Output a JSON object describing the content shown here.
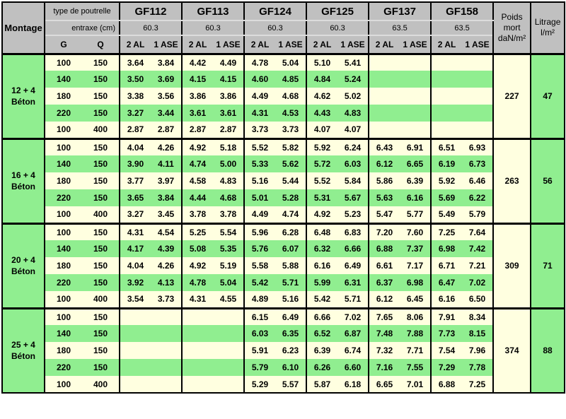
{
  "header": {
    "montage_label": "Montage",
    "type_label": "type de poutrelle",
    "entraxe_label": "entraxe (cm)",
    "g_label": "G",
    "q_label": "Q",
    "groups": [
      {
        "name": "GF112",
        "entraxe": "60.3",
        "sub1": "2 AL",
        "sub2": "1 ASE"
      },
      {
        "name": "GF113",
        "entraxe": "60.3",
        "sub1": "2 AL",
        "sub2": "1 ASE"
      },
      {
        "name": "GF124",
        "entraxe": "60.3",
        "sub1": "2 AL",
        "sub2": "1 ASE"
      },
      {
        "name": "GF125",
        "entraxe": "60.3",
        "sub1": "2 AL",
        "sub2": "1 ASE"
      },
      {
        "name": "GF137",
        "entraxe": "63.5",
        "sub1": "2 AL",
        "sub2": "1 ASE"
      },
      {
        "name": "GF158",
        "entraxe": "63.5",
        "sub1": "2 AL",
        "sub2": "1 ASE"
      }
    ],
    "poids_lines": [
      "Poids",
      "mort",
      "daN/m²"
    ],
    "litrage_lines": [
      "Litrage",
      "l/m²"
    ]
  },
  "blocks": [
    {
      "montage": [
        "12 + 4",
        "Béton"
      ],
      "poids": "227",
      "litrage": "47",
      "rows": [
        {
          "g": "100",
          "q": "150",
          "values": [
            "3.64",
            "3.84",
            "4.42",
            "4.49",
            "4.78",
            "5.04",
            "5.10",
            "5.41",
            "",
            "",
            "",
            ""
          ]
        },
        {
          "g": "140",
          "q": "150",
          "values": [
            "3.50",
            "3.69",
            "4.15",
            "4.15",
            "4.60",
            "4.85",
            "4.84",
            "5.24",
            "",
            "",
            "",
            ""
          ]
        },
        {
          "g": "180",
          "q": "150",
          "values": [
            "3.38",
            "3.56",
            "3.86",
            "3.86",
            "4.49",
            "4.68",
            "4.62",
            "5.02",
            "",
            "",
            "",
            ""
          ]
        },
        {
          "g": "220",
          "q": "150",
          "values": [
            "3.27",
            "3.44",
            "3.61",
            "3.61",
            "4.31",
            "4.53",
            "4.43",
            "4.83",
            "",
            "",
            "",
            ""
          ]
        },
        {
          "g": "100",
          "q": "400",
          "values": [
            "2.87",
            "2.87",
            "2.87",
            "2.87",
            "3.73",
            "3.73",
            "4.07",
            "4.07",
            "",
            "",
            "",
            ""
          ]
        }
      ]
    },
    {
      "montage": [
        "16 + 4",
        "Béton"
      ],
      "poids": "263",
      "litrage": "56",
      "rows": [
        {
          "g": "100",
          "q": "150",
          "values": [
            "4.04",
            "4.26",
            "4.92",
            "5.18",
            "5.52",
            "5.82",
            "5.92",
            "6.24",
            "6.43",
            "6.91",
            "6.51",
            "6.93"
          ]
        },
        {
          "g": "140",
          "q": "150",
          "values": [
            "3.90",
            "4.11",
            "4.74",
            "5.00",
            "5.33",
            "5.62",
            "5.72",
            "6.03",
            "6.12",
            "6.65",
            "6.19",
            "6.73"
          ]
        },
        {
          "g": "180",
          "q": "150",
          "values": [
            "3.77",
            "3.97",
            "4.58",
            "4.83",
            "5.16",
            "5.44",
            "5.52",
            "5.84",
            "5.86",
            "6.39",
            "5.92",
            "6.46"
          ]
        },
        {
          "g": "220",
          "q": "150",
          "values": [
            "3.65",
            "3.84",
            "4.44",
            "4.68",
            "5.01",
            "5.28",
            "5.31",
            "5.67",
            "5.63",
            "6.16",
            "5.69",
            "6.22"
          ]
        },
        {
          "g": "100",
          "q": "400",
          "values": [
            "3.27",
            "3.45",
            "3.78",
            "3.78",
            "4.49",
            "4.74",
            "4.92",
            "5.23",
            "5.47",
            "5.77",
            "5.49",
            "5.79"
          ]
        }
      ]
    },
    {
      "montage": [
        "20 + 4",
        "Béton"
      ],
      "poids": "309",
      "litrage": "71",
      "rows": [
        {
          "g": "100",
          "q": "150",
          "values": [
            "4.31",
            "4.54",
            "5.25",
            "5.54",
            "5.96",
            "6.28",
            "6.48",
            "6.83",
            "7.20",
            "7.60",
            "7.25",
            "7.64"
          ]
        },
        {
          "g": "140",
          "q": "150",
          "values": [
            "4.17",
            "4.39",
            "5.08",
            "5.35",
            "5.76",
            "6.07",
            "6.32",
            "6.66",
            "6.88",
            "7.37",
            "6.98",
            "7.42"
          ]
        },
        {
          "g": "180",
          "q": "150",
          "values": [
            "4.04",
            "4.26",
            "4.92",
            "5.19",
            "5.58",
            "5.88",
            "6.16",
            "6.49",
            "6.61",
            "7.17",
            "6.71",
            "7.21"
          ]
        },
        {
          "g": "220",
          "q": "150",
          "values": [
            "3.92",
            "4.13",
            "4.78",
            "5.04",
            "5.42",
            "5.71",
            "5.99",
            "6.31",
            "6.37",
            "6.98",
            "6.47",
            "7.02"
          ]
        },
        {
          "g": "100",
          "q": "400",
          "values": [
            "3.54",
            "3.73",
            "4.31",
            "4.55",
            "4.89",
            "5.16",
            "5.42",
            "5.71",
            "6.12",
            "6.45",
            "6.16",
            "6.50"
          ]
        }
      ]
    },
    {
      "montage": [
        "25 + 4",
        "Béton"
      ],
      "poids": "374",
      "litrage": "88",
      "rows": [
        {
          "g": "100",
          "q": "150",
          "values": [
            "",
            "",
            "",
            "",
            "6.15",
            "6.49",
            "6.66",
            "7.02",
            "7.65",
            "8.06",
            "7.91",
            "8.34"
          ]
        },
        {
          "g": "140",
          "q": "150",
          "values": [
            "",
            "",
            "",
            "",
            "6.03",
            "6.35",
            "6.52",
            "6.87",
            "7.48",
            "7.88",
            "7.73",
            "8.15"
          ]
        },
        {
          "g": "180",
          "q": "150",
          "values": [
            "",
            "",
            "",
            "",
            "5.91",
            "6.23",
            "6.39",
            "6.74",
            "7.32",
            "7.71",
            "7.54",
            "7.96"
          ]
        },
        {
          "g": "220",
          "q": "150",
          "values": [
            "",
            "",
            "",
            "",
            "5.79",
            "6.10",
            "6.26",
            "6.60",
            "7.16",
            "7.55",
            "7.29",
            "7.78"
          ]
        },
        {
          "g": "100",
          "q": "400",
          "values": [
            "",
            "",
            "",
            "",
            "5.29",
            "5.57",
            "5.87",
            "6.18",
            "6.65",
            "7.01",
            "6.88",
            "7.25"
          ]
        }
      ]
    }
  ],
  "colors": {
    "header_bg": "#C0C0C0",
    "row_cream": "#FFFFE0",
    "row_green": "#90EE90",
    "border": "#000000",
    "header_divider": "#DCDCDC"
  }
}
